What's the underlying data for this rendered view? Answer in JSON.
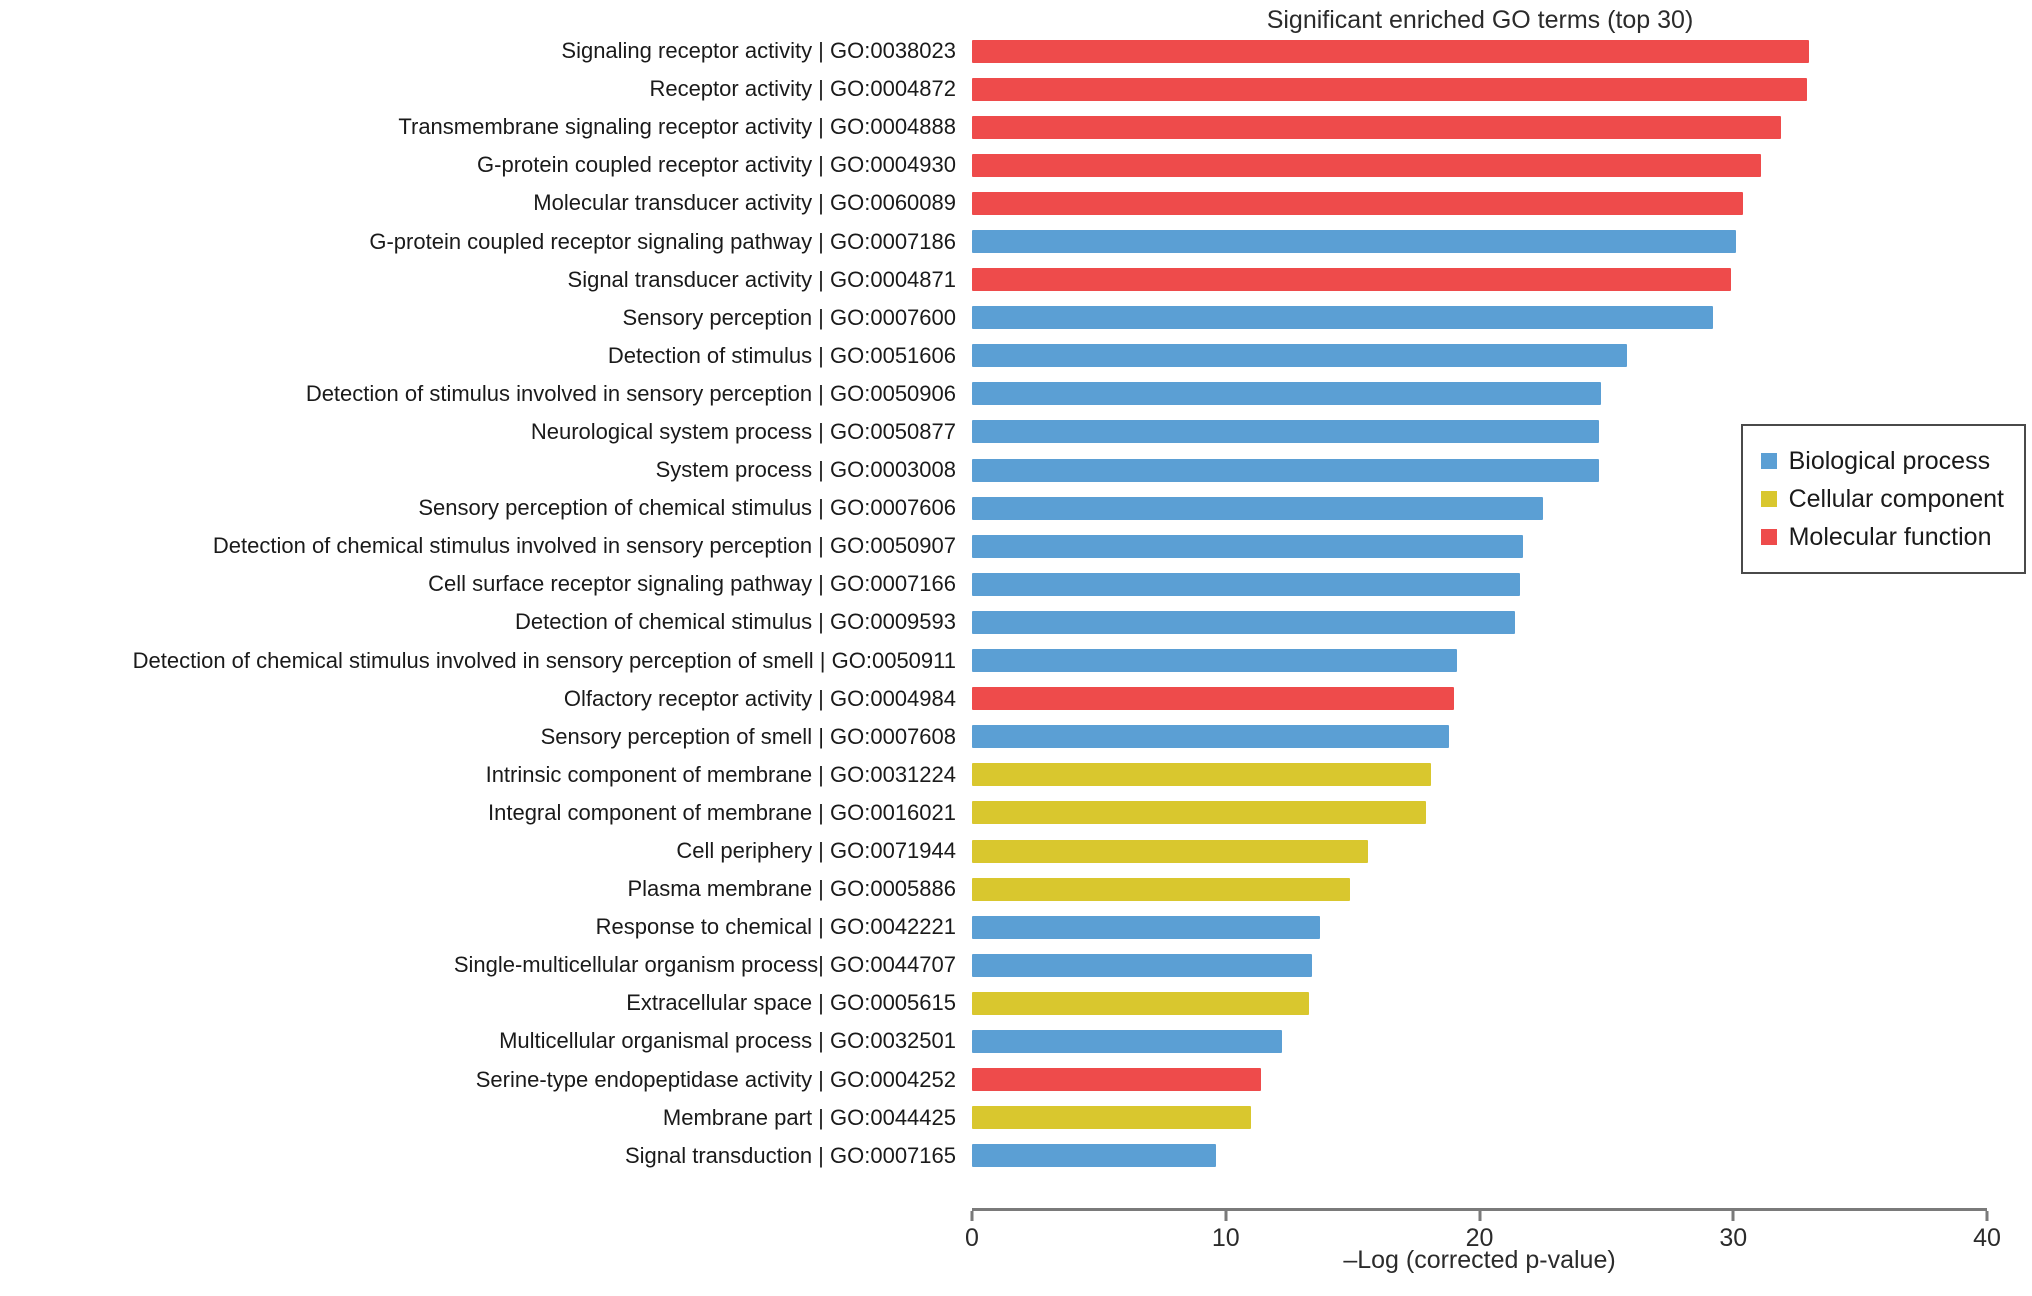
{
  "title": "Significant enriched GO terms (top 30)",
  "x_axis": {
    "label": "–Log (corrected p-value)",
    "ticks": [
      0,
      10,
      20,
      30,
      40
    ],
    "min": 0,
    "max": 40
  },
  "legend": {
    "items": [
      {
        "label": "Biological process",
        "color": "#5B9FD4"
      },
      {
        "label": "Cellular component",
        "color": "#D9C72E"
      },
      {
        "label": "Molecular function",
        "color": "#EE4B4B"
      }
    ]
  },
  "colors": {
    "Biological process": "#5B9FD4",
    "Cellular component": "#D9C72E",
    "Molecular function": "#EE4B4B",
    "axis": "#7a7a7a",
    "text": "#1a1a1a"
  },
  "chart_data": {
    "type": "bar",
    "orientation": "horizontal",
    "title": "Significant enriched GO terms (top 30)",
    "xlabel": "–Log (corrected p-value)",
    "ylabel": "",
    "xlim": [
      0,
      40
    ],
    "grid": false,
    "legend_position": "right",
    "bars": [
      {
        "label": "Signaling receptor activity | GO:0038023",
        "term": "Signaling receptor activity",
        "go_id": "GO:0038023",
        "value": 33.0,
        "category": "Molecular function"
      },
      {
        "label": "Receptor activity | GO:0004872",
        "term": "Receptor activity",
        "go_id": "GO:0004872",
        "value": 32.9,
        "category": "Molecular function"
      },
      {
        "label": "Transmembrane signaling receptor activity | GO:0004888",
        "term": "Transmembrane signaling receptor activity",
        "go_id": "GO:0004888",
        "value": 31.9,
        "category": "Molecular function"
      },
      {
        "label": "G-protein coupled receptor activity | GO:0004930",
        "term": "G-protein coupled receptor activity",
        "go_id": "GO:0004930",
        "value": 31.1,
        "category": "Molecular function"
      },
      {
        "label": "Molecular transducer activity | GO:0060089",
        "term": "Molecular transducer activity",
        "go_id": "GO:0060089",
        "value": 30.4,
        "category": "Molecular function"
      },
      {
        "label": "G-protein coupled receptor signaling pathway | GO:0007186",
        "term": "G-protein coupled receptor signaling pathway",
        "go_id": "GO:0007186",
        "value": 30.1,
        "category": "Biological process"
      },
      {
        "label": "Signal transducer activity | GO:0004871",
        "term": "Signal transducer activity",
        "go_id": "GO:0004871",
        "value": 29.9,
        "category": "Molecular function"
      },
      {
        "label": "Sensory perception | GO:0007600",
        "term": "Sensory perception",
        "go_id": "GO:0007600",
        "value": 29.2,
        "category": "Biological process"
      },
      {
        "label": "Detection of stimulus | GO:0051606",
        "term": "Detection of stimulus",
        "go_id": "GO:0051606",
        "value": 25.8,
        "category": "Biological process"
      },
      {
        "label": "Detection of stimulus involved in sensory perception | GO:0050906",
        "term": "Detection of stimulus involved in sensory perception",
        "go_id": "GO:0050906",
        "value": 24.8,
        "category": "Biological process"
      },
      {
        "label": "Neurological system process | GO:0050877",
        "term": "Neurological system process",
        "go_id": "GO:0050877",
        "value": 24.7,
        "category": "Biological process"
      },
      {
        "label": "System process | GO:0003008",
        "term": "System process",
        "go_id": "GO:0003008",
        "value": 24.7,
        "category": "Biological process"
      },
      {
        "label": "Sensory perception of chemical stimulus | GO:0007606",
        "term": "Sensory perception of chemical stimulus",
        "go_id": "GO:0007606",
        "value": 22.5,
        "category": "Biological process"
      },
      {
        "label": "Detection of chemical stimulus involved in sensory perception | GO:0050907",
        "term": "Detection of chemical stimulus involved in sensory perception",
        "go_id": "GO:0050907",
        "value": 21.7,
        "category": "Biological process"
      },
      {
        "label": "Cell surface receptor signaling pathway | GO:0007166",
        "term": "Cell surface receptor signaling pathway",
        "go_id": "GO:0007166",
        "value": 21.6,
        "category": "Biological process"
      },
      {
        "label": "Detection of chemical stimulus | GO:0009593",
        "term": "Detection of chemical stimulus",
        "go_id": "GO:0009593",
        "value": 21.4,
        "category": "Biological process"
      },
      {
        "label": "Detection of chemical stimulus involved in sensory perception of smell | GO:0050911",
        "term": "Detection of chemical stimulus involved in sensory perception of smell",
        "go_id": "GO:0050911",
        "value": 19.1,
        "category": "Biological process"
      },
      {
        "label": "Olfactory receptor activity | GO:0004984",
        "term": "Olfactory receptor activity",
        "go_id": "GO:0004984",
        "value": 19.0,
        "category": "Molecular function"
      },
      {
        "label": "Sensory perception of smell | GO:0007608",
        "term": "Sensory perception of smell",
        "go_id": "GO:0007608",
        "value": 18.8,
        "category": "Biological process"
      },
      {
        "label": "Intrinsic component of membrane | GO:0031224",
        "term": "Intrinsic component of membrane",
        "go_id": "GO:0031224",
        "value": 18.1,
        "category": "Cellular component"
      },
      {
        "label": "Integral component of membrane | GO:0016021",
        "term": "Integral component of membrane",
        "go_id": "GO:0016021",
        "value": 17.9,
        "category": "Cellular component"
      },
      {
        "label": "Cell periphery | GO:0071944",
        "term": "Cell periphery",
        "go_id": "GO:0071944",
        "value": 15.6,
        "category": "Cellular component"
      },
      {
        "label": "Plasma membrane | GO:0005886",
        "term": "Plasma membrane",
        "go_id": "GO:0005886",
        "value": 14.9,
        "category": "Cellular component"
      },
      {
        "label": "Response to chemical | GO:0042221",
        "term": "Response to chemical",
        "go_id": "GO:0042221",
        "value": 13.7,
        "category": "Biological process"
      },
      {
        "label": "Single-multicellular organism process| GO:0044707",
        "term": "Single-multicellular organism process",
        "go_id": "GO:0044707",
        "value": 13.4,
        "category": "Biological process"
      },
      {
        "label": "Extracellular space | GO:0005615",
        "term": "Extracellular space",
        "go_id": "GO:0005615",
        "value": 13.3,
        "category": "Cellular component"
      },
      {
        "label": "Multicellular organismal process | GO:0032501",
        "term": "Multicellular organismal process",
        "go_id": "GO:0032501",
        "value": 12.2,
        "category": "Biological process"
      },
      {
        "label": "Serine-type endopeptidase activity | GO:0004252",
        "term": "Serine-type endopeptidase activity",
        "go_id": "GO:0004252",
        "value": 11.4,
        "category": "Molecular function"
      },
      {
        "label": "Membrane part | GO:0044425",
        "term": "Membrane part",
        "go_id": "GO:0044425",
        "value": 11.0,
        "category": "Cellular component"
      },
      {
        "label": "Signal transduction | GO:0007165",
        "term": "Signal transduction",
        "go_id": "GO:0007165",
        "value": 9.6,
        "category": "Biological process"
      }
    ]
  }
}
